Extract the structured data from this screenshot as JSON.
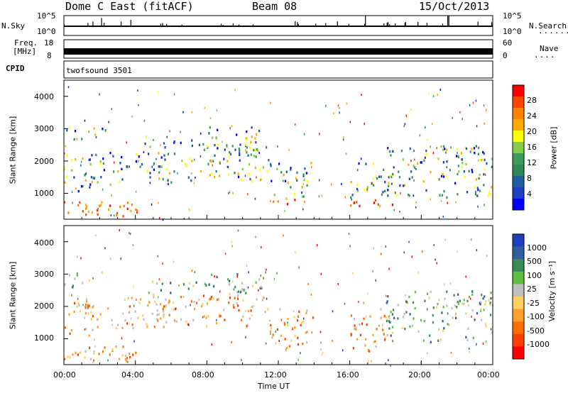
{
  "header": {
    "station": "Dome C East (fitACF)",
    "beam": "Beam 08",
    "date": "15/Oct/2013"
  },
  "top_panels": {
    "nsky_label": "N.Sky",
    "nsky_ticks": [
      "10^5",
      "10^0"
    ],
    "nsearch_label": "N.Search",
    "nsearch_ticks": [
      "10^5",
      "10^0"
    ],
    "freq_label": "Freq.",
    "freq_unit": "[MHz]",
    "freq_ticks": [
      "18",
      "8"
    ],
    "nave_label": "Nave",
    "nave_ticks": [
      "60",
      "0"
    ],
    "cpid_label": "CPID",
    "cpid_value": "twofsound 3501"
  },
  "chart_data": [
    {
      "type": "heatmap",
      "name": "power",
      "ylabel": "Slant Range [km]",
      "xlabel": "Time UT",
      "x_ticks": [
        "00:00",
        "04:00",
        "08:00",
        "12:00",
        "16:00",
        "20:00",
        "00:00"
      ],
      "y_ticks": [
        "1000",
        "2000",
        "3000",
        "4000"
      ],
      "xlim": [
        0,
        24
      ],
      "ylim": [
        200,
        4500
      ],
      "colorbar_label": "Power [dB]",
      "colorbar_ticks": [
        "28",
        "24",
        "20",
        "16",
        "12",
        "8",
        "4"
      ],
      "colorbar_colors": [
        "#ff0000",
        "#ff4400",
        "#ff7f00",
        "#ffaa00",
        "#ffff00",
        "#88cc44",
        "#3a9a5a",
        "#2e8b57",
        "#1f5f9f",
        "#1e3fbf",
        "#0000ff"
      ]
    },
    {
      "type": "heatmap",
      "name": "velocity",
      "ylabel": "Slant Range [km]",
      "xlabel": "Time UT",
      "x_ticks": [
        "00:00",
        "04:00",
        "08:00",
        "12:00",
        "16:00",
        "20:00",
        "00:00"
      ],
      "y_ticks": [
        "1000",
        "2000",
        "3000",
        "4000"
      ],
      "xlim": [
        0,
        24
      ],
      "ylim": [
        200,
        4500
      ],
      "colorbar_label": "Velocity [m s⁻¹]",
      "colorbar_ticks": [
        "1000",
        "500",
        "100",
        "25",
        "-25",
        "-100",
        "-500",
        "-1000"
      ],
      "colorbar_colors": [
        "#1f3fbf",
        "#2f5f9f",
        "#3a8a5a",
        "#5fbf3f",
        "#bfbfbf",
        "#ffcf5f",
        "#ff9f2f",
        "#ff6f00",
        "#ff3f00",
        "#ff0000"
      ]
    }
  ],
  "xlabel": "Time UT"
}
